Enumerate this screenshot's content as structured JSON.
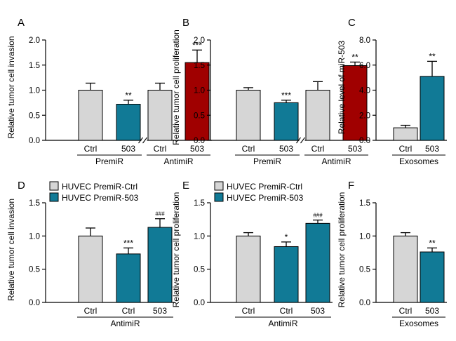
{
  "colors": {
    "ctrl": "#d6d6d6",
    "teal": "#117a96",
    "red": "#a00000",
    "axis": "#000000"
  },
  "chart_data": [
    {
      "panel": "A",
      "type": "bar",
      "ylabel": "Relative tumor cell invasion",
      "ylim": [
        0,
        2.0
      ],
      "yticks": [
        "0.0",
        "0.5",
        "1.0",
        "1.5",
        "2.0"
      ],
      "categories": [
        "Ctrl",
        "503",
        "Ctrl",
        "503"
      ],
      "values": [
        1.0,
        0.72,
        1.0,
        1.55
      ],
      "errors": [
        0.14,
        0.08,
        0.14,
        0.25
      ],
      "colors": [
        "ctrl",
        "teal",
        "ctrl",
        "red"
      ],
      "sig": [
        "",
        "**",
        "",
        "***"
      ],
      "axis_break": true,
      "groups": [
        {
          "label": "PremiR",
          "span": [
            0,
            1
          ]
        },
        {
          "label": "AntimiR",
          "span": [
            2,
            3
          ]
        }
      ],
      "legend": []
    },
    {
      "panel": "B",
      "type": "bar",
      "ylabel": "Relative tumor cell proliferation",
      "ylim": [
        0,
        2.0
      ],
      "yticks": [
        "0.0",
        "0.5",
        "1.0",
        "1.5",
        "2.0"
      ],
      "categories": [
        "Ctrl",
        "503",
        "Ctrl",
        "503"
      ],
      "values": [
        1.0,
        0.75,
        1.0,
        1.49
      ],
      "errors": [
        0.05,
        0.05,
        0.17,
        0.07
      ],
      "colors": [
        "ctrl",
        "teal",
        "ctrl",
        "red"
      ],
      "sig": [
        "",
        "***",
        "",
        "**"
      ],
      "axis_break": true,
      "groups": [
        {
          "label": "PremiR",
          "span": [
            0,
            1
          ]
        },
        {
          "label": "AntimiR",
          "span": [
            2,
            3
          ]
        }
      ],
      "legend": []
    },
    {
      "panel": "C",
      "type": "bar",
      "ylabel": "Relative level of miR-503",
      "ylim": [
        0,
        8.0
      ],
      "yticks": [
        "0.0",
        "2.0",
        "4.0",
        "6.0",
        "8.0"
      ],
      "categories": [
        "Ctrl",
        "503"
      ],
      "values": [
        1.0,
        5.1
      ],
      "errors": [
        0.2,
        1.2
      ],
      "colors": [
        "ctrl",
        "teal"
      ],
      "sig": [
        "",
        "**"
      ],
      "axis_break": false,
      "groups": [
        {
          "label": "Exosomes",
          "span": [
            0,
            1
          ]
        }
      ],
      "legend": []
    },
    {
      "panel": "D",
      "type": "bar",
      "ylabel": "Relative tumor cell invasion",
      "ylim": [
        0,
        1.5
      ],
      "yticks": [
        "0.0",
        "0.5",
        "1.0",
        "1.5"
      ],
      "categories": [
        "Ctrl",
        "Ctrl",
        "503"
      ],
      "values": [
        1.0,
        0.73,
        1.13
      ],
      "errors": [
        0.12,
        0.09,
        0.13
      ],
      "colors": [
        "ctrl",
        "teal",
        "teal"
      ],
      "sig": [
        "",
        "***",
        "###"
      ],
      "axis_break": false,
      "groups": [
        {
          "label": "AntimiR",
          "span": [
            0,
            2
          ]
        }
      ],
      "legend": [
        {
          "name": "HUVEC PremiR-Ctrl",
          "color": "ctrl"
        },
        {
          "name": "HUVEC PremiR-503",
          "color": "teal"
        }
      ]
    },
    {
      "panel": "E",
      "type": "bar",
      "ylabel": "Relative tumor cell proliferation",
      "ylim": [
        0,
        1.5
      ],
      "yticks": [
        "0.0",
        "0.5",
        "1.0",
        "1.5"
      ],
      "categories": [
        "Ctrl",
        "Ctrl",
        "503"
      ],
      "values": [
        1.0,
        0.84,
        1.19
      ],
      "errors": [
        0.05,
        0.07,
        0.05
      ],
      "colors": [
        "ctrl",
        "teal",
        "teal"
      ],
      "sig": [
        "",
        "*",
        "###"
      ],
      "axis_break": false,
      "groups": [
        {
          "label": "AntimiR",
          "span": [
            0,
            2
          ]
        }
      ],
      "legend": [
        {
          "name": "HUVEC PremiR-Ctrl",
          "color": "ctrl"
        },
        {
          "name": "HUVEC PremiR-503",
          "color": "teal"
        }
      ]
    },
    {
      "panel": "F",
      "type": "bar",
      "ylabel": "Relative tumor cell proliferation",
      "ylim": [
        0,
        1.5
      ],
      "yticks": [
        "0.0",
        "0.5",
        "1.0",
        "1.5"
      ],
      "categories": [
        "Ctrl",
        "503"
      ],
      "values": [
        1.0,
        0.76
      ],
      "errors": [
        0.05,
        0.06
      ],
      "colors": [
        "ctrl",
        "teal"
      ],
      "sig": [
        "",
        "**"
      ],
      "axis_break": false,
      "groups": [
        {
          "label": "Exosomes",
          "span": [
            0,
            1
          ]
        }
      ],
      "legend": []
    }
  ]
}
